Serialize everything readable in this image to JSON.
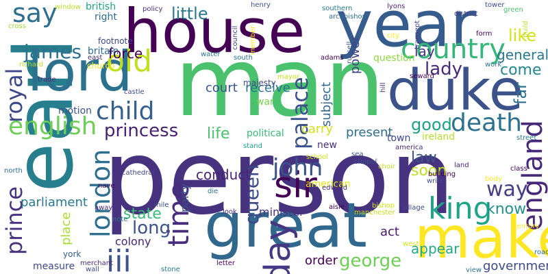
{
  "cloud": {
    "words": [
      {
        "text": "person",
        "color": "#46327e"
      },
      {
        "text": "man",
        "color": "#4ac16d"
      },
      {
        "text": "earl",
        "color": "#277f8e"
      },
      {
        "text": "house",
        "color": "#440154"
      },
      {
        "text": "year",
        "color": "#365c8d"
      },
      {
        "text": "duke",
        "color": "#3b528b"
      },
      {
        "text": "great",
        "color": "#31688e"
      },
      {
        "text": "make",
        "color": "#fde725"
      },
      {
        "text": "lord",
        "color": "#2c728e"
      },
      {
        "text": "country",
        "color": "#35b779"
      },
      {
        "text": "sir",
        "color": "#440154"
      },
      {
        "text": "say",
        "color": "#2e6e8e"
      },
      {
        "text": "english",
        "color": "#6ece58"
      },
      {
        "text": "royal",
        "color": "#3e4989"
      },
      {
        "text": "prince",
        "color": "#46327e"
      },
      {
        "text": "time",
        "color": "#472d7b"
      },
      {
        "text": "king",
        "color": "#20a486"
      },
      {
        "text": "queen",
        "color": "#3e4989"
      },
      {
        "text": "john",
        "color": "#3b528b"
      },
      {
        "text": "england",
        "color": "#482878"
      },
      {
        "text": "death",
        "color": "#2c728e"
      },
      {
        "text": "day",
        "color": "#453781"
      },
      {
        "text": "london",
        "color": "#2e6e8e"
      },
      {
        "text": "iii",
        "color": "#3b528b"
      },
      {
        "text": "old",
        "color": "#c2df23"
      },
      {
        "text": "child",
        "color": "#355f8d"
      },
      {
        "text": "george",
        "color": "#6ece58"
      },
      {
        "text": "palace",
        "color": "#3b528b"
      },
      {
        "text": "james",
        "color": "#2c728e"
      },
      {
        "text": "lady",
        "color": "#472a7a"
      },
      {
        "text": "princess",
        "color": "#482173"
      },
      {
        "text": "little",
        "color": "#2a788e"
      },
      {
        "text": "good",
        "color": "#1fa187"
      },
      {
        "text": "far",
        "color": "#2c728e"
      },
      {
        "text": "like",
        "color": "#d5e21a"
      },
      {
        "text": "way",
        "color": "#433e85"
      },
      {
        "text": "come",
        "color": "#24868e"
      },
      {
        "text": "long",
        "color": "#3b528b"
      },
      {
        "text": "know",
        "color": "#21918c"
      },
      {
        "text": "general",
        "color": "#2a788e"
      },
      {
        "text": "life",
        "color": "#4ac16d"
      },
      {
        "text": "state",
        "color": "#3bbb75"
      },
      {
        "text": "parliament",
        "color": "#2a788e"
      },
      {
        "text": "soon",
        "color": "#bddf26"
      },
      {
        "text": "law",
        "color": "#3b528b"
      },
      {
        "text": "government",
        "color": "#3e4a89"
      },
      {
        "text": "power",
        "color": "#414487"
      },
      {
        "text": "conduct",
        "color": "#482475"
      },
      {
        "text": "receive",
        "color": "#2c728e"
      },
      {
        "text": "carry",
        "color": "#d2e21b"
      },
      {
        "text": "appear",
        "color": "#22a884"
      },
      {
        "text": "present",
        "color": "#2e6e8e"
      },
      {
        "text": "court",
        "color": "#3a548c"
      },
      {
        "text": "force",
        "color": "#440154"
      },
      {
        "text": "lay",
        "color": "#46327e"
      },
      {
        "text": "order",
        "color": "#440154"
      },
      {
        "text": "act",
        "color": "#481769"
      },
      {
        "text": "subject",
        "color": "#31688e"
      },
      {
        "text": "minister",
        "color": "#46337e"
      },
      {
        "text": "british",
        "color": "#20a486"
      },
      {
        "text": "american",
        "color": "#e5e419"
      },
      {
        "text": "party",
        "color": "#3b528b"
      },
      {
        "text": "colony",
        "color": "#482677"
      },
      {
        "text": "place",
        "color": "#a8db34"
      },
      {
        "text": "measure",
        "color": "#3e4989"
      },
      {
        "text": "question",
        "color": "#8fd744"
      },
      {
        "text": "york",
        "color": "#355f8d"
      },
      {
        "text": "britain",
        "color": "#31688e"
      },
      {
        "text": "right",
        "color": "#2e6e8e"
      },
      {
        "text": "political",
        "color": "#3bbb75"
      },
      {
        "text": "majesty",
        "color": "#3e4a89"
      },
      {
        "text": "war",
        "color": "#7ad151"
      },
      {
        "text": "motion",
        "color": "#3b528b"
      },
      {
        "text": "ireland",
        "color": "#b5de2b"
      },
      {
        "text": "new",
        "color": "#46327e"
      },
      {
        "text": "town",
        "color": "#404688"
      },
      {
        "text": "church",
        "color": "#fde725"
      },
      {
        "text": "footnote",
        "color": "#3e4989"
      },
      {
        "text": "policy",
        "color": "#472d7b"
      },
      {
        "text": "southern",
        "color": "#2a788e"
      },
      {
        "text": "archbishop",
        "color": "#2e6e8e"
      },
      {
        "text": "lyons",
        "color": "#481f70"
      },
      {
        "text": "tower",
        "color": "#3e4989"
      },
      {
        "text": "district",
        "color": "#443a83"
      },
      {
        "text": "transept",
        "color": "#414487"
      },
      {
        "text": "russell",
        "color": "#3b528b"
      },
      {
        "text": "adams",
        "color": "#440154"
      },
      {
        "text": "south",
        "color": "#2c728e"
      },
      {
        "text": "henry",
        "color": "#3b528b"
      },
      {
        "text": "council",
        "color": "#414487"
      },
      {
        "text": "member",
        "color": "#fde725"
      },
      {
        "text": "water",
        "color": "#2a788e"
      },
      {
        "text": "window",
        "color": "#b8de29"
      },
      {
        "text": "cross",
        "color": "#a0da39"
      },
      {
        "text": "east",
        "color": "#482878"
      },
      {
        "text": "richard",
        "color": "#b5de2b"
      },
      {
        "text": "trade",
        "color": "#482878"
      },
      {
        "text": "castle",
        "color": "#3e4989"
      },
      {
        "text": "mayor",
        "color": "#c8e020"
      },
      {
        "text": "seward",
        "color": "#440154"
      },
      {
        "text": "work",
        "color": "#2c728e"
      },
      {
        "text": "green",
        "color": "#4ac16d"
      },
      {
        "text": "build",
        "color": "#b5de2b"
      },
      {
        "text": "form",
        "color": "#440154"
      },
      {
        "text": "city",
        "color": "#fde725"
      },
      {
        "text": "hill",
        "color": "#46327e"
      },
      {
        "text": "street",
        "color": "#2a788e"
      },
      {
        "text": "stand",
        "color": "#1f9e89"
      },
      {
        "text": "school",
        "color": "#d2e21b"
      },
      {
        "text": "chapel",
        "color": "#3b528b"
      },
      {
        "text": "america",
        "color": "#472d7b"
      },
      {
        "text": "sea",
        "color": "#3e4989"
      },
      {
        "text": "edward",
        "color": "#482878"
      },
      {
        "text": "choir",
        "color": "#bddf26"
      },
      {
        "text": "land",
        "color": "#482878"
      },
      {
        "text": "class",
        "color": "#440154"
      },
      {
        "text": "building",
        "color": "#440154"
      },
      {
        "text": "write",
        "color": "#3e4989"
      },
      {
        "text": "body",
        "color": "#fde725"
      },
      {
        "text": "nave",
        "color": "#440154"
      },
      {
        "text": "cathedral",
        "color": "#414487"
      },
      {
        "text": "north",
        "color": "#2e6e8e"
      },
      {
        "text": "away",
        "color": "#482878"
      },
      {
        "text": "note",
        "color": "#2c728e"
      },
      {
        "text": "mile",
        "color": "#3e4989"
      },
      {
        "text": "die",
        "color": "#2c728e"
      },
      {
        "text": "look",
        "color": "#482878"
      },
      {
        "text": "aisle",
        "color": "#440154"
      },
      {
        "text": "bishop",
        "color": "#d5e21a"
      },
      {
        "text": "village",
        "color": "#3e4989"
      },
      {
        "text": "manchester",
        "color": "#c8e020"
      },
      {
        "text": "west",
        "color": "#d5e21a"
      },
      {
        "text": "century",
        "color": "#fde725"
      },
      {
        "text": "road",
        "color": "#2e6e8e"
      },
      {
        "text": "view",
        "color": "#2c728e"
      },
      {
        "text": "merchant",
        "color": "#482878"
      },
      {
        "text": "wall",
        "color": "#3e4989"
      },
      {
        "text": "letter",
        "color": "#440154"
      },
      {
        "text": "stone",
        "color": "#2a788e"
      }
    ]
  }
}
